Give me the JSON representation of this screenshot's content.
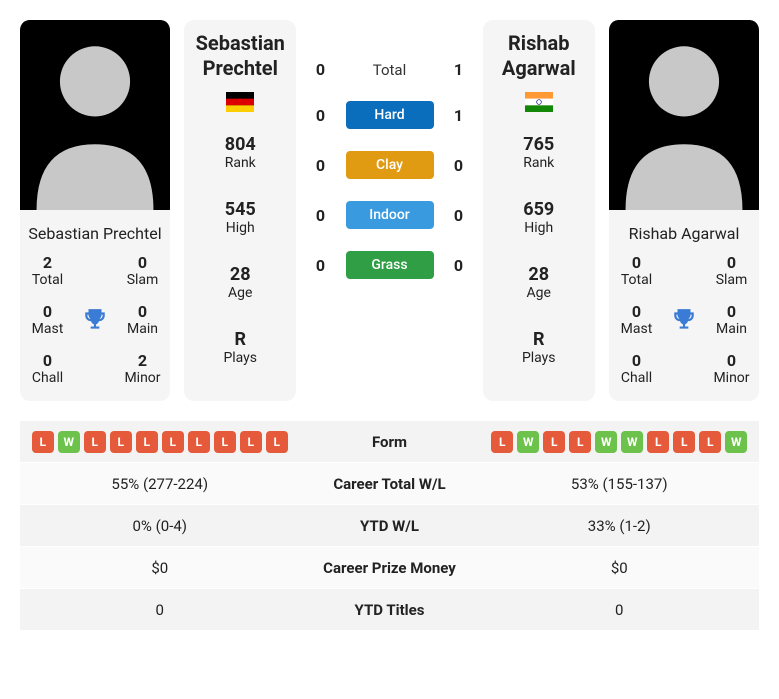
{
  "labels": {
    "total": "Total",
    "slam": "Slam",
    "mast": "Mast",
    "main": "Main",
    "chall": "Chall",
    "minor": "Minor",
    "rank": "Rank",
    "high": "High",
    "age": "Age",
    "plays": "Plays",
    "h2h_total": "Total",
    "form": "Form",
    "career_total_wl": "Career Total W/L",
    "ytd_wl": "YTD W/L",
    "career_prize_money": "Career Prize Money",
    "ytd_titles": "YTD Titles"
  },
  "surfaces": {
    "hard": {
      "label": "Hard",
      "pill_class": "pill-hard"
    },
    "clay": {
      "label": "Clay",
      "pill_class": "pill-clay"
    },
    "indoor": {
      "label": "Indoor",
      "pill_class": "pill-indoor"
    },
    "grass": {
      "label": "Grass",
      "pill_class": "pill-grass"
    }
  },
  "colors": {
    "card_bg": "#f5f5f5",
    "form_win": "#6cc24a",
    "form_loss": "#e55a3a",
    "trophy": "#3a7bd5",
    "pill_hard": "#0a6ebd",
    "pill_clay": "#e09b13",
    "pill_indoor": "#3a9adf",
    "pill_grass": "#2f9e44"
  },
  "h2h": {
    "total": {
      "p1": "0",
      "p2": "1"
    },
    "hard": {
      "p1": "0",
      "p2": "1"
    },
    "clay": {
      "p1": "0",
      "p2": "0"
    },
    "indoor": {
      "p1": "0",
      "p2": "0"
    },
    "grass": {
      "p1": "0",
      "p2": "0"
    }
  },
  "p1": {
    "name": "Sebastian Prechtel",
    "name_multiline": "Sebastian\nPrechtel",
    "flag": "germany",
    "titles": {
      "total": "2",
      "slam": "0",
      "mast": "0",
      "main": "0",
      "chall": "0",
      "minor": "2"
    },
    "stats": {
      "rank": "804",
      "high": "545",
      "age": "28",
      "plays": "R"
    },
    "form": [
      "L",
      "W",
      "L",
      "L",
      "L",
      "L",
      "L",
      "L",
      "L",
      "L"
    ],
    "career_wl": "55% (277-224)",
    "ytd_wl": "0% (0-4)",
    "prize": "$0",
    "ytd_titles": "0"
  },
  "p2": {
    "name": "Rishab Agarwal",
    "name_multiline": "Rishab\nAgarwal",
    "flag": "india",
    "titles": {
      "total": "0",
      "slam": "0",
      "mast": "0",
      "main": "0",
      "chall": "0",
      "minor": "0"
    },
    "stats": {
      "rank": "765",
      "high": "659",
      "age": "28",
      "plays": "R"
    },
    "form": [
      "L",
      "W",
      "L",
      "L",
      "W",
      "W",
      "L",
      "L",
      "L",
      "W"
    ],
    "career_wl": "53% (155-137)",
    "ytd_wl": "33% (1-2)",
    "prize": "$0",
    "ytd_titles": "0"
  }
}
